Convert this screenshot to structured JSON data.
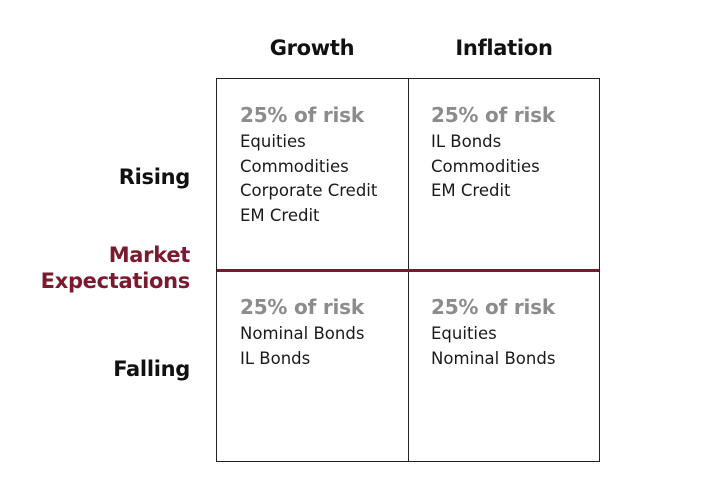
{
  "columns": {
    "growth": "Growth",
    "inflation": "Inflation"
  },
  "rows": {
    "rising": "Rising",
    "falling": "Falling"
  },
  "axis_title": {
    "line1": "Market",
    "line2": "Expectations"
  },
  "cells": {
    "rising_growth": {
      "risk": "25% of risk",
      "assets": [
        "Equities",
        "Commodities",
        "Corporate Credit",
        "EM Credit"
      ]
    },
    "rising_inflation": {
      "risk": "25% of risk",
      "assets": [
        "IL Bonds",
        "Commodities",
        "EM Credit"
      ]
    },
    "falling_growth": {
      "risk": "25% of risk",
      "assets": [
        "Nominal Bonds",
        "IL Bonds"
      ]
    },
    "falling_inflation": {
      "risk": "25% of risk",
      "assets": [
        "Equities",
        "Nominal Bonds"
      ]
    }
  },
  "colors": {
    "accent": "#7b1a2e",
    "risk_text": "#8c8c8c",
    "text": "#111111",
    "border": "#222222"
  }
}
